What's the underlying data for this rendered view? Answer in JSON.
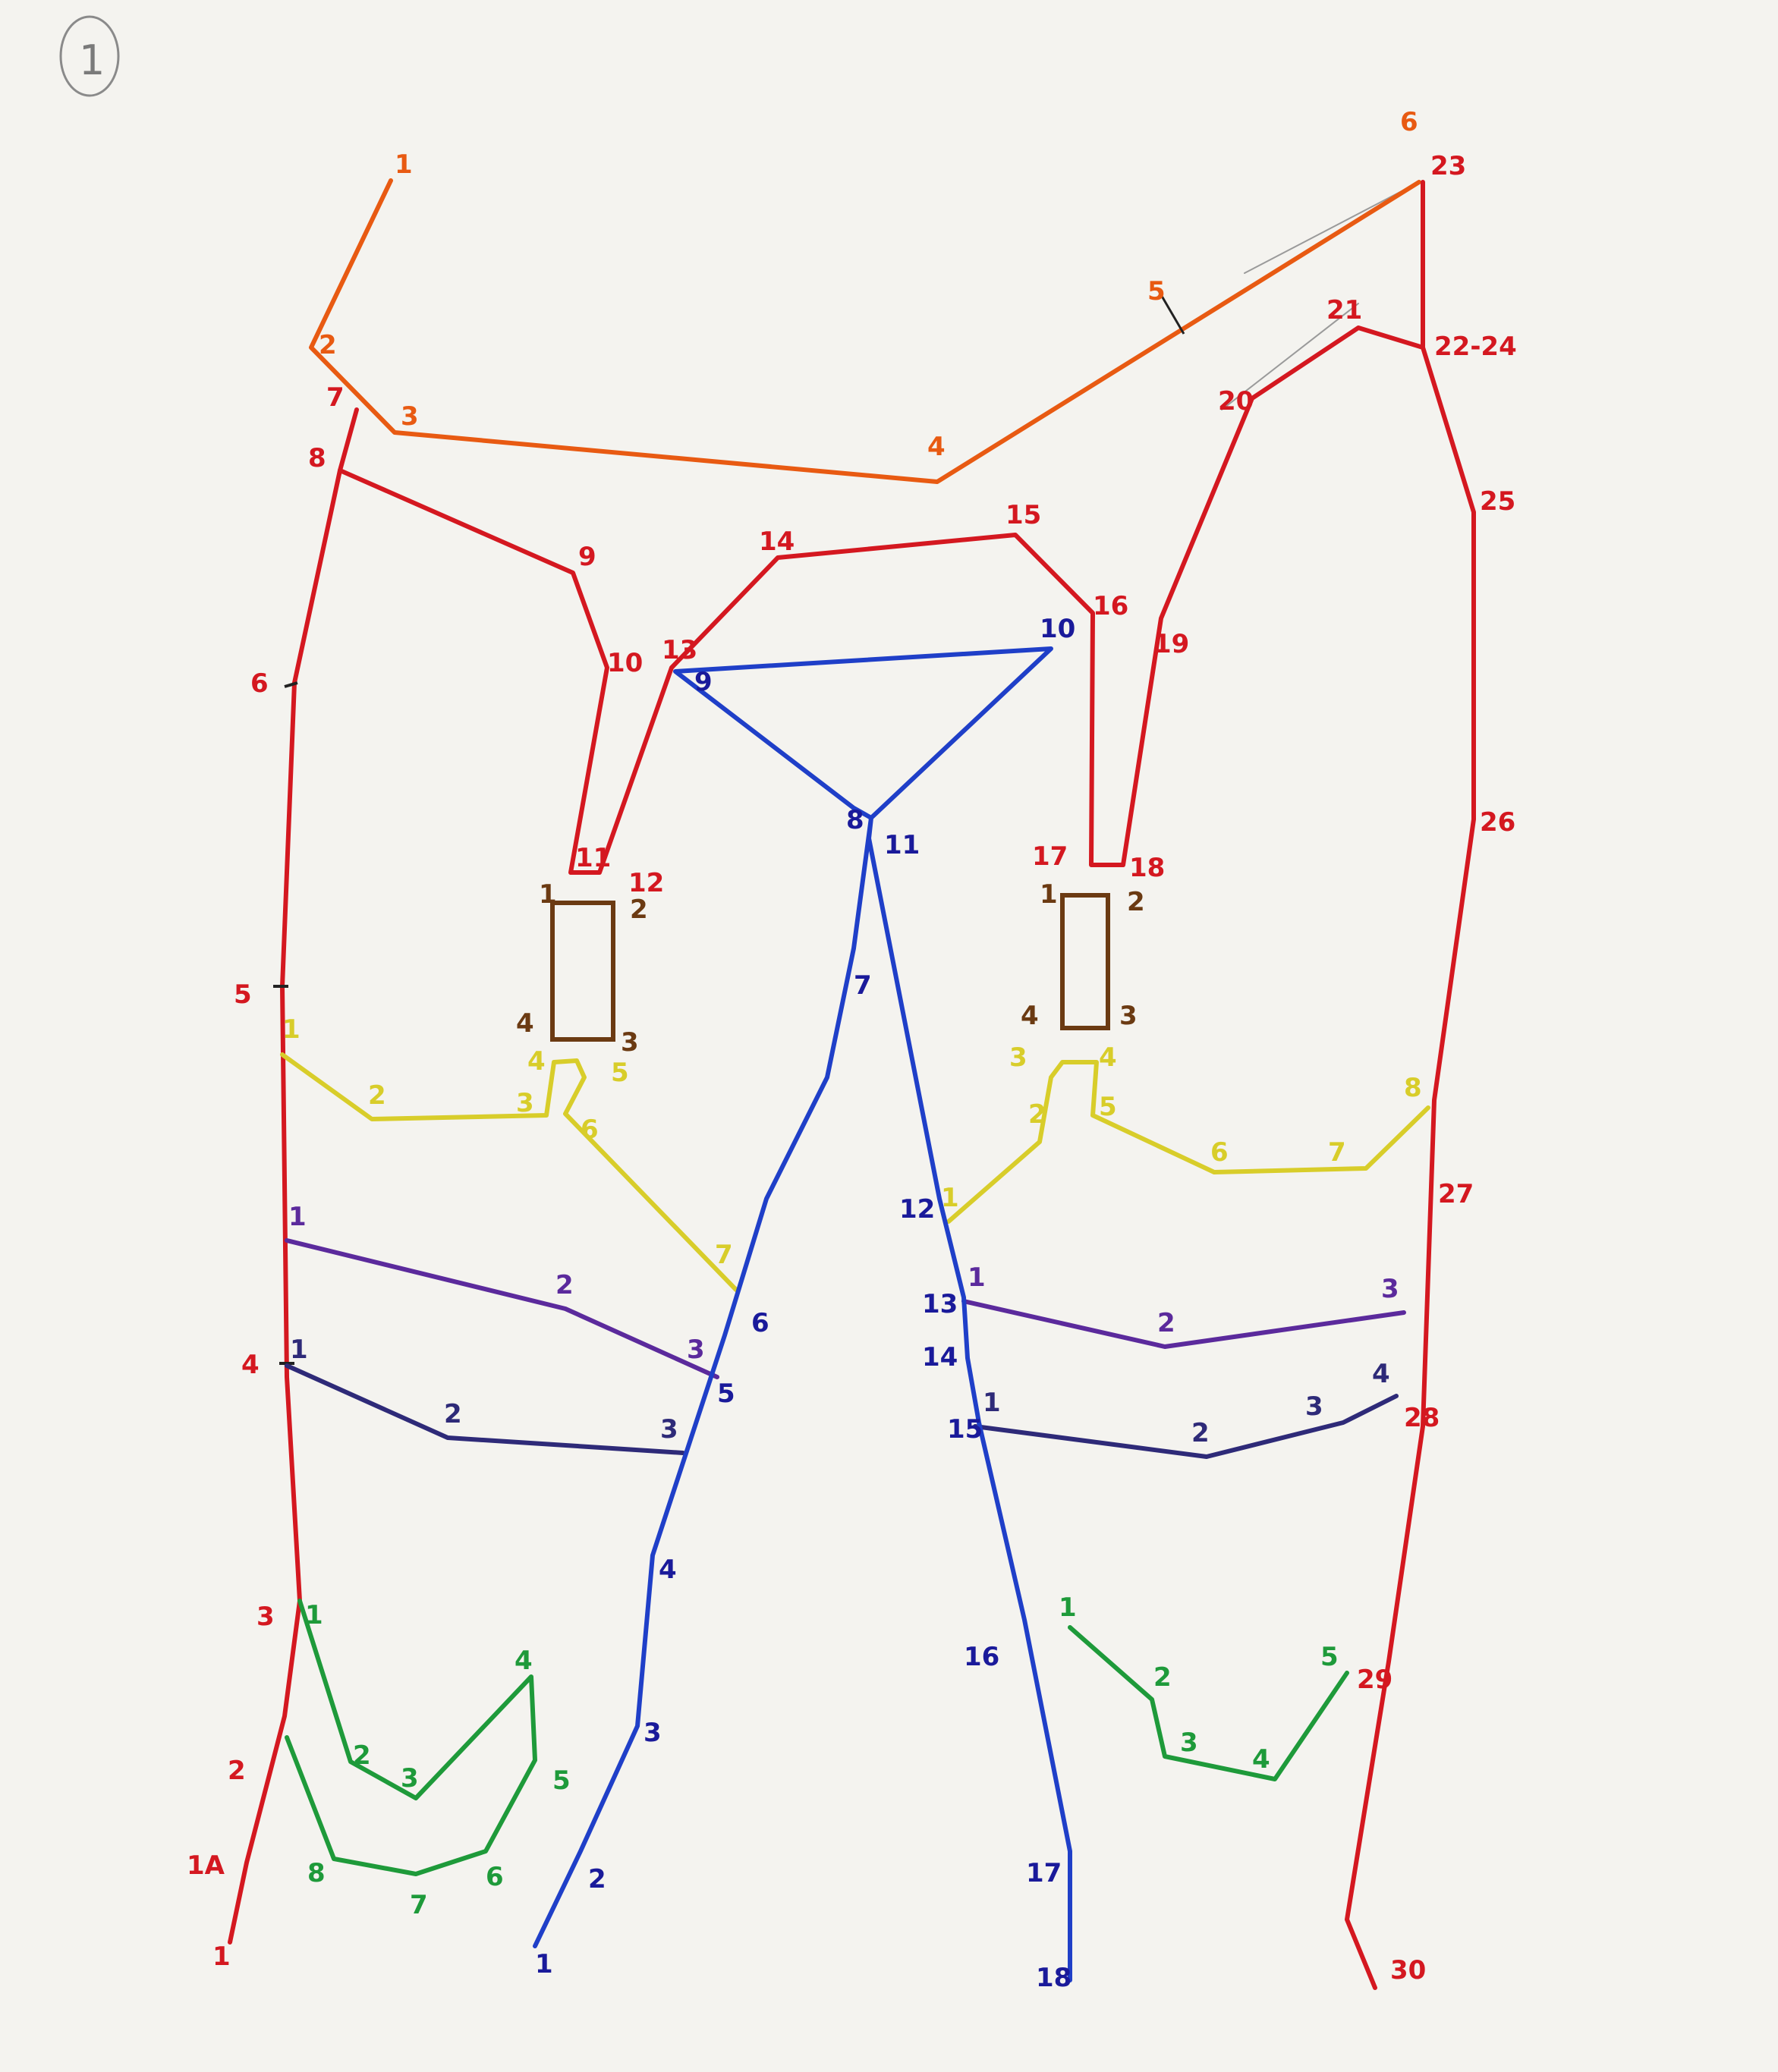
{
  "page": {
    "number": "1",
    "paper_color": "#f4f3ef"
  },
  "palette": {
    "red": "#d41820",
    "orange": "#e85a12",
    "brown": "#6b3a12",
    "yellow": "#d8cd2a",
    "violet": "#5b2a9c",
    "indigo": "#2e2a78",
    "green": "#1e9a3a",
    "blue": "#1f3fc8",
    "dark_blue": "#1a1a9a",
    "pencil": "#7a7a7a"
  },
  "labels": {
    "red": [
      "1",
      "1A",
      "2",
      "3",
      "4",
      "5",
      "6",
      "7",
      "8",
      "9",
      "10",
      "11",
      "12",
      "13",
      "14",
      "15",
      "16",
      "17",
      "18",
      "19",
      "20",
      "21",
      "22-24",
      "23",
      "25",
      "26",
      "27",
      "28",
      "29",
      "30"
    ],
    "orange": [
      "1",
      "2",
      "3",
      "4",
      "5",
      "6"
    ],
    "brown": [
      "1",
      "2",
      "3",
      "4"
    ],
    "yellow": [
      "1",
      "2",
      "3",
      "4",
      "5",
      "6",
      "7",
      "8"
    ],
    "violet": [
      "1",
      "2",
      "3"
    ],
    "indigo": [
      "1",
      "2",
      "3",
      "4"
    ],
    "green": [
      "1",
      "2",
      "3",
      "4",
      "5",
      "6",
      "7",
      "8"
    ],
    "blue": [
      "1",
      "2",
      "3",
      "4",
      "5",
      "6",
      "7",
      "8",
      "9",
      "10",
      "11",
      "12",
      "13",
      "14",
      "15",
      "16",
      "17",
      "18"
    ]
  }
}
